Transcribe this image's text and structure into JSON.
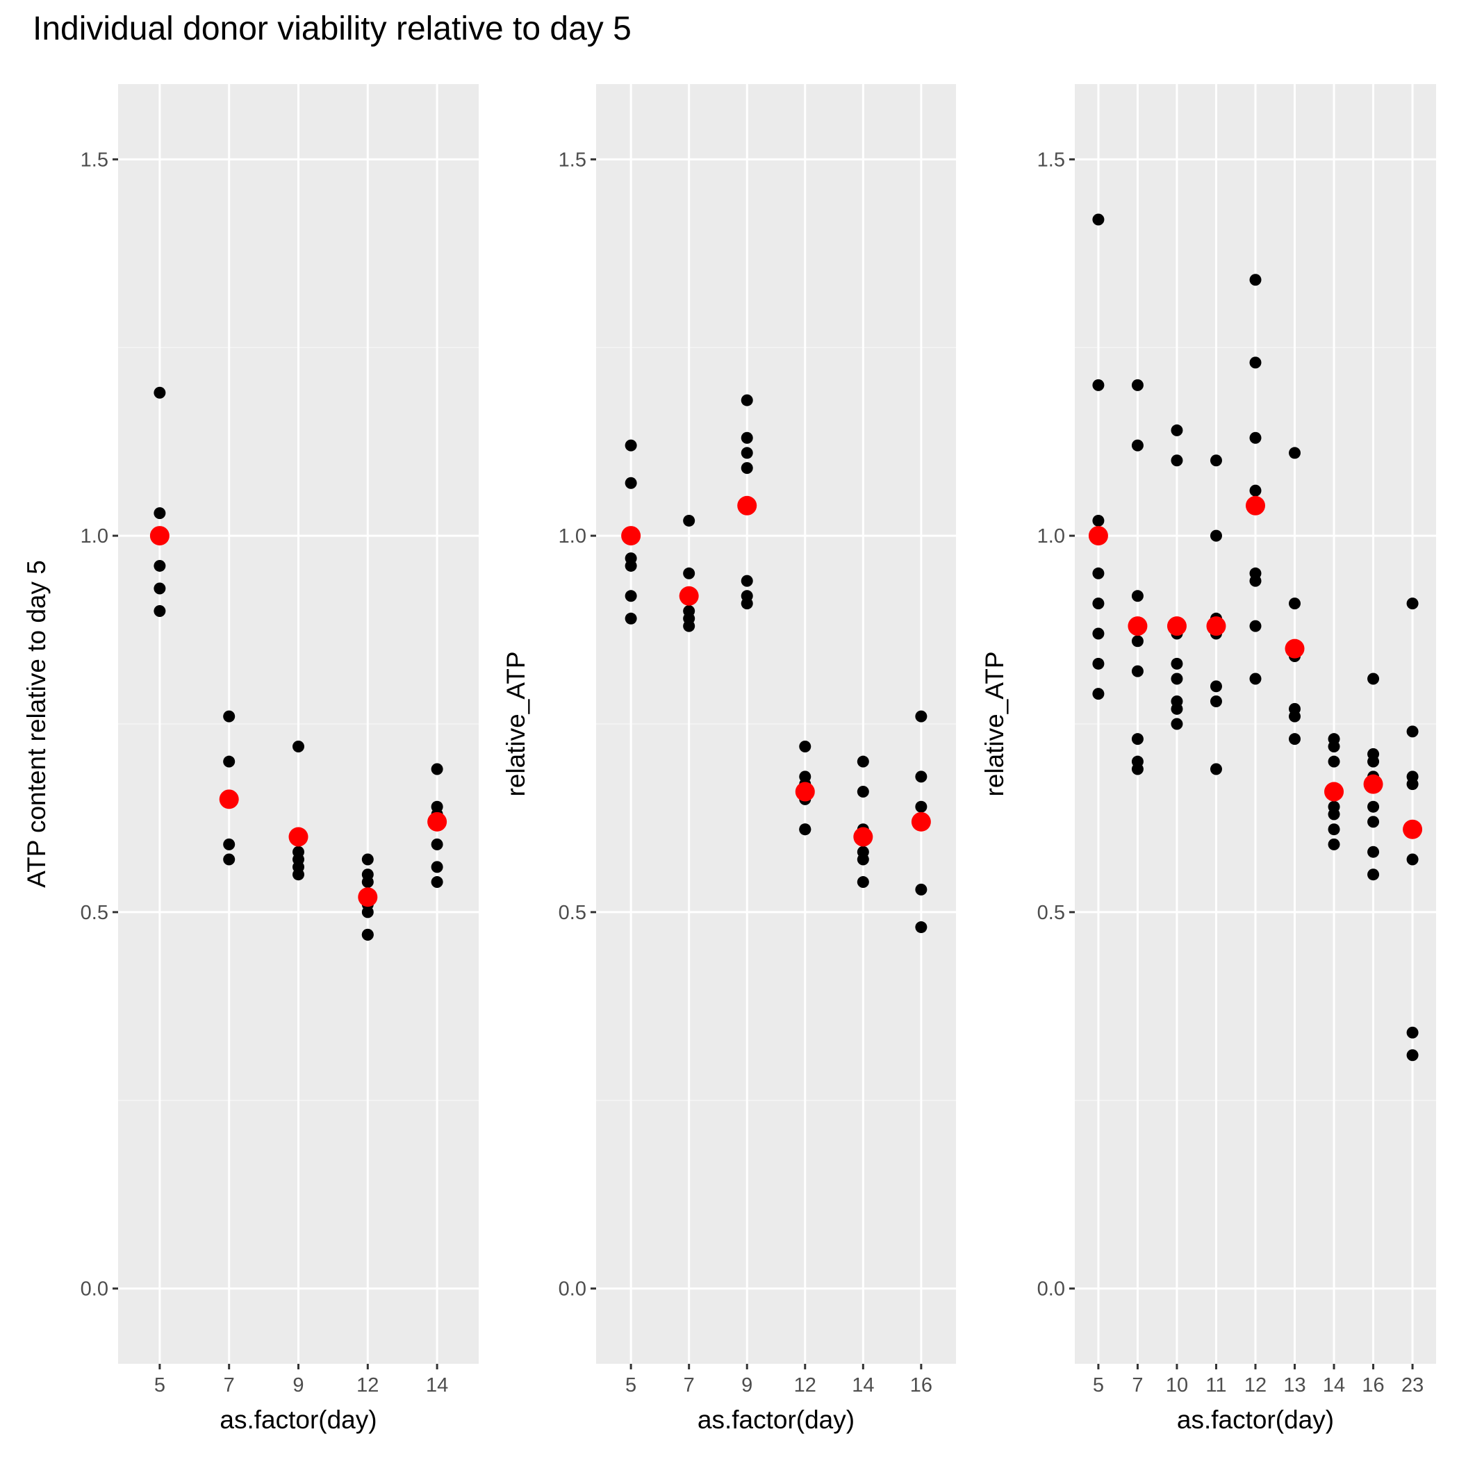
{
  "title": "Individual donor viability relative to day 5",
  "colors": {
    "panel_bg": "#EBEBEB",
    "grid_major": "#FFFFFF",
    "grid_minor": "#F5F5F5",
    "donor_points": "#000000",
    "mean_points": "#FF0000",
    "tick_text": "#4D4D4D"
  },
  "chart_data": [
    {
      "type": "scatter",
      "xlabel": "as.factor(day)",
      "ylabel": "ATP content relative to day 5",
      "ylim": [
        -0.1,
        1.6
      ],
      "yticks": [
        "0.0",
        "0.5",
        "1.0",
        "1.5"
      ],
      "categories": [
        "5",
        "7",
        "9",
        "12",
        "14"
      ],
      "series": [
        {
          "values": [
            [
              1.19,
              1.03,
              0.96,
              0.93,
              0.9
            ],
            [
              0.76,
              0.7,
              0.59,
              0.57
            ],
            [
              0.72,
              0.58,
              0.57,
              0.56,
              0.55
            ],
            [
              0.57,
              0.55,
              0.54,
              0.51,
              0.5,
              0.47,
              0.47
            ],
            [
              0.69,
              0.64,
              0.63,
              0.59,
              0.56,
              0.54
            ]
          ]
        },
        {
          "values": [
            1.0,
            0.65,
            0.6,
            0.52,
            0.62
          ]
        }
      ]
    },
    {
      "type": "scatter",
      "xlabel": "as.factor(day)",
      "ylabel": "relative_ATP",
      "ylim": [
        -0.1,
        1.6
      ],
      "yticks": [
        "0.0",
        "0.5",
        "1.0",
        "1.5"
      ],
      "categories": [
        "5",
        "7",
        "9",
        "12",
        "14",
        "16"
      ],
      "series": [
        {
          "values": [
            [
              1.12,
              1.07,
              0.97,
              0.96,
              0.92,
              0.89
            ],
            [
              1.02,
              0.95,
              0.92,
              0.9,
              0.89,
              0.88
            ],
            [
              1.18,
              1.13,
              1.11,
              1.09,
              0.94,
              0.92,
              0.91
            ],
            [
              0.72,
              0.68,
              0.67,
              0.65,
              0.61,
              0.61
            ],
            [
              0.7,
              0.66,
              0.61,
              0.58,
              0.57,
              0.54
            ],
            [
              0.76,
              0.68,
              0.64,
              0.53,
              0.48
            ]
          ]
        },
        {
          "values": [
            1.0,
            0.92,
            1.04,
            0.66,
            0.6,
            0.62
          ]
        }
      ]
    },
    {
      "type": "scatter",
      "xlabel": "as.factor(day)",
      "ylabel": "relative_ATP",
      "ylim": [
        -0.1,
        1.6
      ],
      "yticks": [
        "0.0",
        "0.5",
        "1.0",
        "1.5"
      ],
      "categories": [
        "5",
        "7",
        "10",
        "11",
        "12",
        "13",
        "14",
        "16",
        "23"
      ],
      "series": [
        {
          "values": [
            [
              1.42,
              1.2,
              1.02,
              0.95,
              0.91,
              0.87,
              0.83,
              0.79
            ],
            [
              1.2,
              1.12,
              0.92,
              0.86,
              0.82,
              0.73,
              0.7,
              0.69
            ],
            [
              1.14,
              1.1,
              0.87,
              0.83,
              0.81,
              0.78,
              0.77,
              0.75
            ],
            [
              1.1,
              1.0,
              0.89,
              0.87,
              0.8,
              0.78,
              0.69
            ],
            [
              1.34,
              1.23,
              1.13,
              1.06,
              0.95,
              0.94,
              0.88,
              0.81
            ],
            [
              1.11,
              0.91,
              0.84,
              0.77,
              0.76,
              0.73
            ],
            [
              0.73,
              0.72,
              0.7,
              0.64,
              0.63,
              0.61,
              0.59
            ],
            [
              0.81,
              0.71,
              0.7,
              0.68,
              0.64,
              0.62,
              0.58,
              0.55
            ],
            [
              0.91,
              0.74,
              0.68,
              0.67,
              0.57,
              0.34,
              0.31
            ]
          ]
        },
        {
          "values": [
            1.0,
            0.88,
            0.88,
            0.88,
            1.04,
            0.85,
            0.66,
            0.67,
            0.61
          ]
        }
      ]
    }
  ]
}
